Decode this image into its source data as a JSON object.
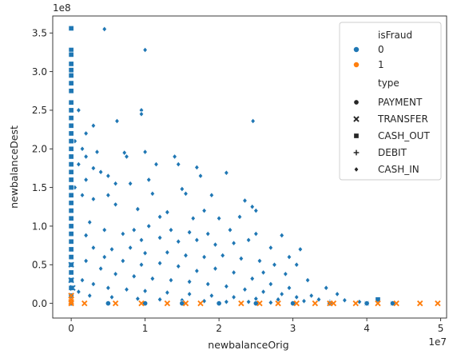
{
  "chart_data": {
    "type": "scatter",
    "title": "",
    "xlabel": "newbalanceOrig",
    "ylabel": "newbalanceDest",
    "x_offset_label": "1e7",
    "y_offset_label": "1e8",
    "x_scale": 10000000,
    "y_scale": 100000000,
    "xlim": [
      -0.25,
      5.08
    ],
    "ylim": [
      -0.19,
      3.72
    ],
    "xticks": [
      0,
      1,
      2,
      3,
      4,
      5
    ],
    "yticks": [
      0.0,
      0.5,
      1.0,
      1.5,
      2.0,
      2.5,
      3.0,
      3.5
    ],
    "xtick_labels": [
      "0",
      "1",
      "2",
      "3",
      "4",
      "5"
    ],
    "ytick_labels": [
      "0.0",
      "0.5",
      "1.0",
      "1.5",
      "2.0",
      "2.5",
      "3.0",
      "3.5"
    ],
    "grid": false,
    "legend_position": "top-right",
    "legend": {
      "hue_title": "isFraud",
      "hue": [
        {
          "label": "0",
          "color": "#1f77b4"
        },
        {
          "label": "1",
          "color": "#ff7f0e"
        }
      ],
      "style_title": "type",
      "style": [
        {
          "label": "PAYMENT",
          "marker": "circle"
        },
        {
          "label": "TRANSFER",
          "marker": "x"
        },
        {
          "label": "CASH_OUT",
          "marker": "square"
        },
        {
          "label": "DEBIT",
          "marker": "plus"
        },
        {
          "label": "CASH_IN",
          "marker": "diamond"
        }
      ]
    },
    "series": [
      {
        "isFraud": "0",
        "type": "CASH_IN",
        "marker": "diamond",
        "color": "#1f77b4",
        "points": [
          [
            0.45,
            3.55
          ],
          [
            1.0,
            3.28
          ],
          [
            0.1,
            2.5
          ],
          [
            0.95,
            2.5
          ],
          [
            0.62,
            2.36
          ],
          [
            2.46,
            2.36
          ],
          [
            0.95,
            2.45
          ],
          [
            0.15,
            2.0
          ],
          [
            0.35,
            1.96
          ],
          [
            1.0,
            1.96
          ],
          [
            0.2,
            1.9
          ],
          [
            0.72,
            1.95
          ],
          [
            0.75,
            1.9
          ],
          [
            1.15,
            1.8
          ],
          [
            1.4,
            1.9
          ],
          [
            1.45,
            1.8
          ],
          [
            1.7,
            1.76
          ],
          [
            2.1,
            1.69
          ],
          [
            1.75,
            1.65
          ],
          [
            1.05,
            1.6
          ],
          [
            0.2,
            1.6
          ],
          [
            0.5,
            1.65
          ],
          [
            0.3,
            1.75
          ],
          [
            0.4,
            1.7
          ],
          [
            0.6,
            1.55
          ],
          [
            0.8,
            1.55
          ],
          [
            1.1,
            1.42
          ],
          [
            1.5,
            1.48
          ],
          [
            1.55,
            1.42
          ],
          [
            1.9,
            1.4
          ],
          [
            2.35,
            1.33
          ],
          [
            2.45,
            1.25
          ],
          [
            2.5,
            1.2
          ],
          [
            2.28,
            1.12
          ],
          [
            1.8,
            1.2
          ],
          [
            2.0,
            1.1
          ],
          [
            1.65,
            1.1
          ],
          [
            1.3,
            1.18
          ],
          [
            1.2,
            1.12
          ],
          [
            0.9,
            1.22
          ],
          [
            0.6,
            1.28
          ],
          [
            0.3,
            1.35
          ],
          [
            0.15,
            1.4
          ],
          [
            0.5,
            1.4
          ],
          [
            0.85,
            0.95
          ],
          [
            1.05,
            1.0
          ],
          [
            1.35,
            0.95
          ],
          [
            1.6,
            0.92
          ],
          [
            1.85,
            0.9
          ],
          [
            2.15,
            0.95
          ],
          [
            2.5,
            0.9
          ],
          [
            2.85,
            0.88
          ],
          [
            3.1,
            0.7
          ],
          [
            2.95,
            0.6
          ],
          [
            3.05,
            0.5
          ],
          [
            2.7,
            0.72
          ],
          [
            2.4,
            0.82
          ],
          [
            2.2,
            0.78
          ],
          [
            1.95,
            0.76
          ],
          [
            1.7,
            0.82
          ],
          [
            1.45,
            0.8
          ],
          [
            1.2,
            0.85
          ],
          [
            0.95,
            0.82
          ],
          [
            0.7,
            0.9
          ],
          [
            0.45,
            0.95
          ],
          [
            0.25,
            1.05
          ],
          [
            0.2,
            0.88
          ],
          [
            0.55,
            0.7
          ],
          [
            0.8,
            0.72
          ],
          [
            1.0,
            0.65
          ],
          [
            1.3,
            0.66
          ],
          [
            1.55,
            0.62
          ],
          [
            1.8,
            0.6
          ],
          [
            2.05,
            0.62
          ],
          [
            2.3,
            0.58
          ],
          [
            2.55,
            0.55
          ],
          [
            2.75,
            0.5
          ],
          [
            2.6,
            0.4
          ],
          [
            2.9,
            0.38
          ],
          [
            3.2,
            0.3
          ],
          [
            3.45,
            0.2
          ],
          [
            3.6,
            0.12
          ],
          [
            3.25,
            0.1
          ],
          [
            2.95,
            0.2
          ],
          [
            2.7,
            0.25
          ],
          [
            2.45,
            0.32
          ],
          [
            2.2,
            0.4
          ],
          [
            1.95,
            0.45
          ],
          [
            1.7,
            0.42
          ],
          [
            1.45,
            0.48
          ],
          [
            1.2,
            0.52
          ],
          [
            0.95,
            0.5
          ],
          [
            0.7,
            0.55
          ],
          [
            0.45,
            0.6
          ],
          [
            0.3,
            0.72
          ],
          [
            0.2,
            0.55
          ],
          [
            0.4,
            0.45
          ],
          [
            0.6,
            0.38
          ],
          [
            0.85,
            0.35
          ],
          [
            1.1,
            0.32
          ],
          [
            1.35,
            0.3
          ],
          [
            1.6,
            0.28
          ],
          [
            1.85,
            0.25
          ],
          [
            2.1,
            0.22
          ],
          [
            2.35,
            0.18
          ],
          [
            2.6,
            0.15
          ],
          [
            2.85,
            0.12
          ],
          [
            3.05,
            0.08
          ],
          [
            3.35,
            0.05
          ],
          [
            3.7,
            0.04
          ],
          [
            3.9,
            0.02
          ],
          [
            3.5,
            0.02
          ],
          [
            3.15,
            0.03
          ],
          [
            2.8,
            0.05
          ],
          [
            2.5,
            0.06
          ],
          [
            2.2,
            0.08
          ],
          [
            1.9,
            0.1
          ],
          [
            1.6,
            0.12
          ],
          [
            1.3,
            0.14
          ],
          [
            1.0,
            0.16
          ],
          [
            0.75,
            0.18
          ],
          [
            0.5,
            0.2
          ],
          [
            0.3,
            0.25
          ],
          [
            0.15,
            0.3
          ],
          [
            0.1,
            0.15
          ],
          [
            0.25,
            0.1
          ],
          [
            0.55,
            0.08
          ],
          [
            0.9,
            0.06
          ],
          [
            1.2,
            0.05
          ],
          [
            1.5,
            0.04
          ],
          [
            1.8,
            0.03
          ],
          [
            2.1,
            0.02
          ],
          [
            2.4,
            0.02
          ],
          [
            2.7,
            0.01
          ],
          [
            0.2,
            2.2
          ],
          [
            0.3,
            2.3
          ],
          [
            0.05,
            2.1
          ],
          [
            0.1,
            1.8
          ],
          [
            0.05,
            1.5
          ]
        ]
      },
      {
        "isFraud": "0",
        "type": "CASH_OUT",
        "marker": "square",
        "color": "#1f77b4",
        "points": [
          [
            0.0,
            3.56
          ],
          [
            0.0,
            3.28
          ],
          [
            0.0,
            3.22
          ],
          [
            0.0,
            3.1
          ],
          [
            0.0,
            3.02
          ],
          [
            0.0,
            2.95
          ],
          [
            0.0,
            2.85
          ],
          [
            0.0,
            2.75
          ],
          [
            0.0,
            2.6
          ],
          [
            0.0,
            2.5
          ],
          [
            0.0,
            2.4
          ],
          [
            0.0,
            2.3
          ],
          [
            0.0,
            2.2
          ],
          [
            0.0,
            2.1
          ],
          [
            0.0,
            2.0
          ],
          [
            0.0,
            1.9
          ],
          [
            0.0,
            1.8
          ],
          [
            0.0,
            1.7
          ],
          [
            0.0,
            1.6
          ],
          [
            0.0,
            1.5
          ],
          [
            0.0,
            1.4
          ],
          [
            0.0,
            1.3
          ],
          [
            0.0,
            1.2
          ],
          [
            0.0,
            1.1
          ],
          [
            0.0,
            1.0
          ],
          [
            0.0,
            0.9
          ],
          [
            0.0,
            0.8
          ],
          [
            0.0,
            0.7
          ],
          [
            0.0,
            0.6
          ],
          [
            0.0,
            0.5
          ],
          [
            0.0,
            0.4
          ],
          [
            0.0,
            0.3
          ],
          [
            0.0,
            0.2
          ],
          [
            0.0,
            0.1
          ],
          [
            4.15,
            0.05
          ],
          [
            4.35,
            0.0
          ],
          [
            4.0,
            0.0
          ],
          [
            3.5,
            0.0
          ]
        ]
      },
      {
        "isFraud": "0",
        "type": "PAYMENT",
        "marker": "circle",
        "color": "#1f77b4",
        "points": [
          [
            0.0,
            0.0
          ],
          [
            0.5,
            0.0
          ],
          [
            1.0,
            0.0
          ],
          [
            1.5,
            0.0
          ],
          [
            2.0,
            0.0
          ],
          [
            2.5,
            0.0
          ],
          [
            3.0,
            0.0
          ],
          [
            3.5,
            0.0
          ],
          [
            4.0,
            0.0
          ],
          [
            4.35,
            0.0
          ]
        ]
      },
      {
        "isFraud": "0",
        "type": "TRANSFER",
        "marker": "x",
        "color": "#1f77b4",
        "points": [
          [
            0.0,
            0.5
          ],
          [
            0.0,
            0.3
          ],
          [
            0.02,
            0.2
          ],
          [
            0.0,
            0.1
          ]
        ]
      },
      {
        "isFraud": "1",
        "type": "TRANSFER",
        "marker": "x",
        "color": "#ff7f0e",
        "points": [
          [
            0.0,
            0.1
          ],
          [
            0.0,
            0.05
          ],
          [
            0.0,
            0.02
          ],
          [
            0.0,
            0.0
          ],
          [
            0.18,
            0.0
          ],
          [
            0.6,
            0.0
          ],
          [
            0.95,
            0.0
          ],
          [
            1.3,
            0.0
          ],
          [
            1.55,
            0.0
          ],
          [
            1.75,
            0.0
          ],
          [
            2.3,
            0.0
          ],
          [
            2.55,
            0.0
          ],
          [
            2.8,
            0.0
          ],
          [
            3.05,
            0.0
          ],
          [
            3.3,
            0.0
          ],
          [
            3.5,
            0.0
          ],
          [
            3.55,
            0.0
          ],
          [
            3.85,
            0.0
          ],
          [
            4.15,
            0.0
          ],
          [
            4.4,
            0.0
          ],
          [
            4.72,
            0.0
          ],
          [
            4.96,
            0.0
          ]
        ]
      }
    ]
  }
}
